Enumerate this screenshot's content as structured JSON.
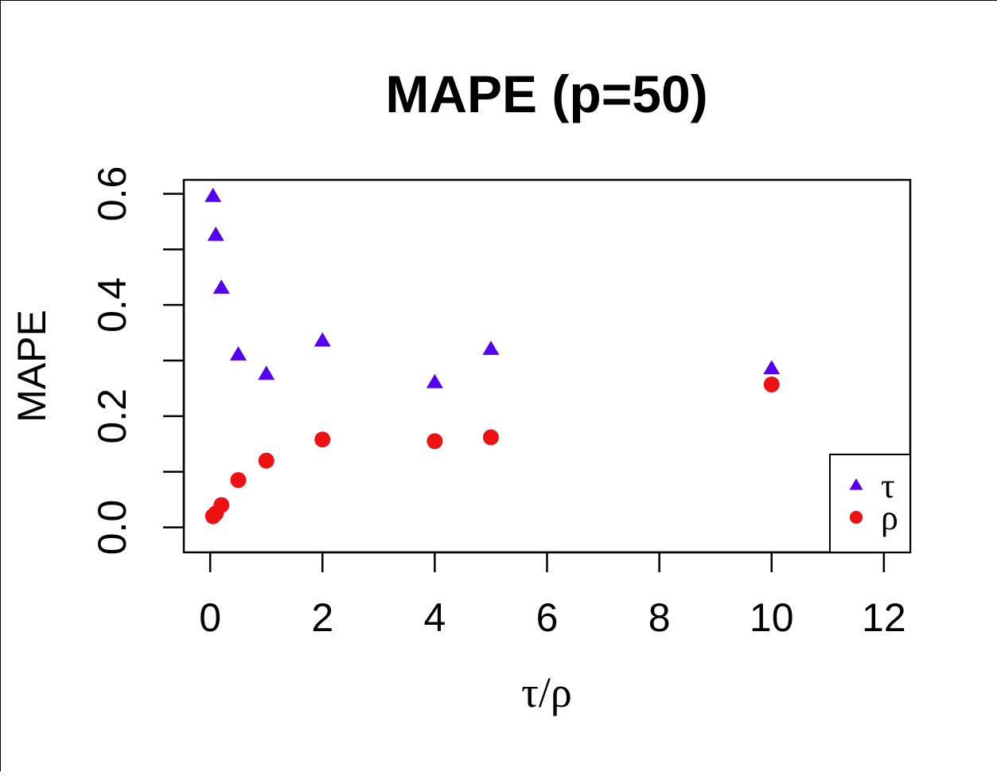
{
  "chart_data": {
    "type": "scatter",
    "title": "MAPE (p=50)",
    "xlabel": "τ/ρ",
    "ylabel": "MAPE",
    "xlim": [
      -0.47,
      12.47
    ],
    "ylim": [
      -0.045,
      0.625
    ],
    "x_ticks": [
      0,
      2,
      4,
      6,
      8,
      10,
      12
    ],
    "x_tick_labels": [
      "0",
      "2",
      "4",
      "6",
      "8",
      "10",
      "12"
    ],
    "y_ticks": [
      0.0,
      0.1,
      0.2,
      0.3,
      0.4,
      0.5,
      0.6
    ],
    "y_tick_labels": [
      "0.0",
      "",
      "0.2",
      "",
      "0.4",
      "",
      "0.6"
    ],
    "grid": false,
    "legend_position": "bottom-right",
    "series": [
      {
        "name": "τ",
        "marker": "triangle",
        "color": "#5500ee",
        "points": [
          {
            "x": 0.05,
            "y": 0.595
          },
          {
            "x": 0.1,
            "y": 0.525
          },
          {
            "x": 0.2,
            "y": 0.43
          },
          {
            "x": 0.5,
            "y": 0.31
          },
          {
            "x": 1,
            "y": 0.275
          },
          {
            "x": 2,
            "y": 0.335
          },
          {
            "x": 4,
            "y": 0.26
          },
          {
            "x": 5,
            "y": 0.32
          },
          {
            "x": 10,
            "y": 0.285
          }
        ]
      },
      {
        "name": "ρ",
        "marker": "circle",
        "color": "#ee1111",
        "points": [
          {
            "x": 0.05,
            "y": 0.02
          },
          {
            "x": 0.1,
            "y": 0.025
          },
          {
            "x": 0.2,
            "y": 0.04
          },
          {
            "x": 0.5,
            "y": 0.085
          },
          {
            "x": 1,
            "y": 0.12
          },
          {
            "x": 2,
            "y": 0.158
          },
          {
            "x": 4,
            "y": 0.155
          },
          {
            "x": 5,
            "y": 0.162
          },
          {
            "x": 10,
            "y": 0.257
          }
        ]
      }
    ]
  }
}
